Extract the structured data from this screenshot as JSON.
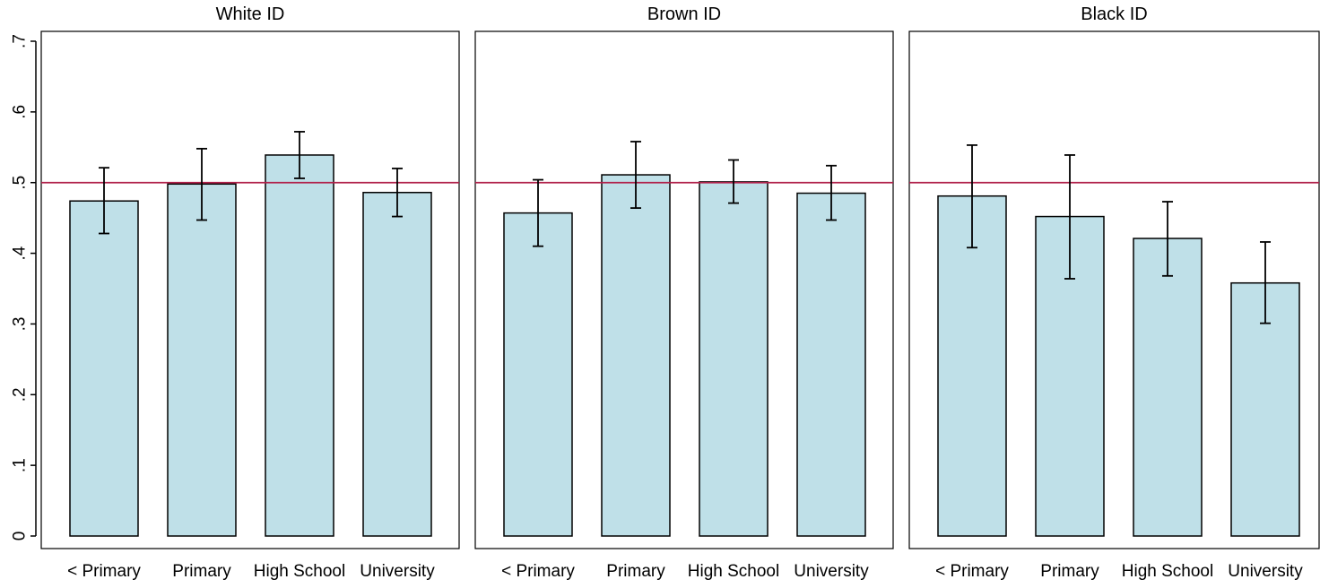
{
  "chart_data": {
    "type": "bar",
    "categories": [
      "< Primary",
      "Primary",
      "High School",
      "University"
    ],
    "ylim": [
      0,
      0.7
    ],
    "yticks": [
      {
        "value": 0,
        "label": "0"
      },
      {
        "value": 0.1,
        "label": ".1"
      },
      {
        "value": 0.2,
        "label": ".2"
      },
      {
        "value": 0.3,
        "label": ".3"
      },
      {
        "value": 0.4,
        "label": ".4"
      },
      {
        "value": 0.5,
        "label": ".5"
      },
      {
        "value": 0.6,
        "label": ".6"
      },
      {
        "value": 0.7,
        "label": ".7"
      }
    ],
    "reference_line": 0.5,
    "grid": false,
    "colors": {
      "bar_fill": "#bfe0e8",
      "bar_stroke": "#000000",
      "reference_line": "#b0204a",
      "error_bar": "#000000"
    },
    "panels": [
      {
        "title": "White ID",
        "values": [
          0.474,
          0.498,
          0.539,
          0.486
        ],
        "ci_low": [
          0.428,
          0.447,
          0.506,
          0.452
        ],
        "ci_high": [
          0.521,
          0.548,
          0.572,
          0.52
        ]
      },
      {
        "title": "Brown ID",
        "values": [
          0.457,
          0.511,
          0.501,
          0.485
        ],
        "ci_low": [
          0.41,
          0.464,
          0.471,
          0.447
        ],
        "ci_high": [
          0.504,
          0.558,
          0.532,
          0.524
        ]
      },
      {
        "title": "Black ID",
        "values": [
          0.481,
          0.452,
          0.421,
          0.358
        ],
        "ci_low": [
          0.408,
          0.364,
          0.368,
          0.301
        ],
        "ci_high": [
          0.553,
          0.539,
          0.473,
          0.416
        ]
      }
    ]
  }
}
